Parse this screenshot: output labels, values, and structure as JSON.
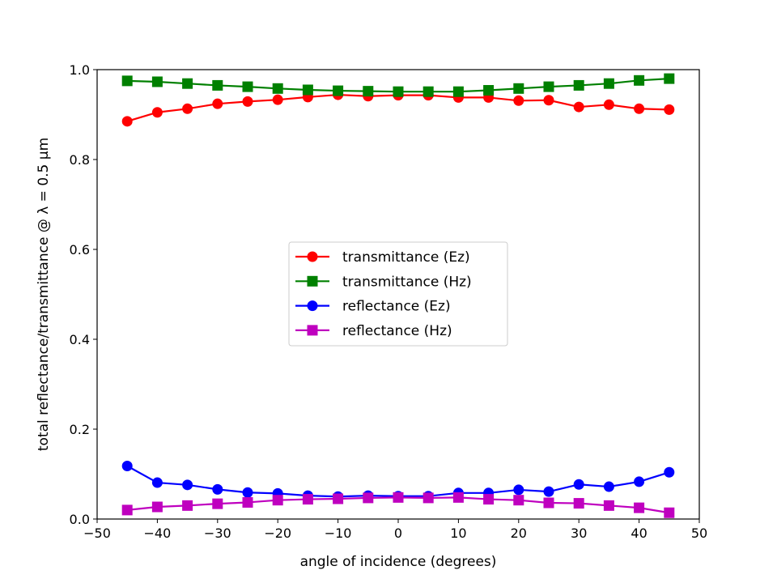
{
  "chart_data": {
    "type": "line",
    "title": "",
    "xlabel": "angle of incidence (degrees)",
    "ylabel": "total reflectance/transmittance @ λ = 0.5 μm",
    "xlim": [
      -50,
      50
    ],
    "ylim": [
      0,
      1
    ],
    "xticks": [
      -50,
      -40,
      -30,
      -20,
      -10,
      0,
      10,
      20,
      30,
      40,
      50
    ],
    "yticks": [
      0,
      0.2,
      0.4,
      0.6,
      0.8,
      1
    ],
    "xtick_labels": [
      "−50",
      "−40",
      "−30",
      "−20",
      "−10",
      "0",
      "10",
      "20",
      "30",
      "40",
      "50"
    ],
    "ytick_labels": [
      "0.0",
      "0.2",
      "0.4",
      "0.6",
      "0.8",
      "1.0"
    ],
    "grid": false,
    "legend_position": "center",
    "x": [
      -45,
      -40,
      -35,
      -30,
      -25,
      -20,
      -15,
      -10,
      -5,
      0,
      5,
      10,
      15,
      20,
      25,
      30,
      35,
      40,
      45
    ],
    "series": [
      {
        "name": "transmittance (Ez)",
        "color": "#ff0000",
        "marker": "circle",
        "values": [
          0.885,
          0.905,
          0.913,
          0.924,
          0.929,
          0.933,
          0.939,
          0.944,
          0.941,
          0.943,
          0.943,
          0.938,
          0.938,
          0.931,
          0.932,
          0.917,
          0.922,
          0.913,
          0.911
        ]
      },
      {
        "name": "transmittance (Hz)",
        "color": "#008000",
        "marker": "square",
        "values": [
          0.975,
          0.973,
          0.969,
          0.965,
          0.962,
          0.958,
          0.955,
          0.953,
          0.952,
          0.951,
          0.951,
          0.951,
          0.954,
          0.958,
          0.962,
          0.965,
          0.969,
          0.976,
          0.98
        ]
      },
      {
        "name": "reflectance (Ez)",
        "color": "#0000ff",
        "marker": "circle",
        "values": [
          0.118,
          0.081,
          0.076,
          0.066,
          0.059,
          0.057,
          0.052,
          0.05,
          0.052,
          0.051,
          0.051,
          0.058,
          0.058,
          0.065,
          0.061,
          0.077,
          0.072,
          0.083,
          0.104
        ]
      },
      {
        "name": "reflectance (Hz)",
        "color": "#bf00bf",
        "marker": "square",
        "values": [
          0.02,
          0.027,
          0.03,
          0.034,
          0.037,
          0.042,
          0.044,
          0.045,
          0.047,
          0.048,
          0.047,
          0.048,
          0.044,
          0.042,
          0.036,
          0.035,
          0.03,
          0.025,
          0.014
        ]
      }
    ]
  }
}
